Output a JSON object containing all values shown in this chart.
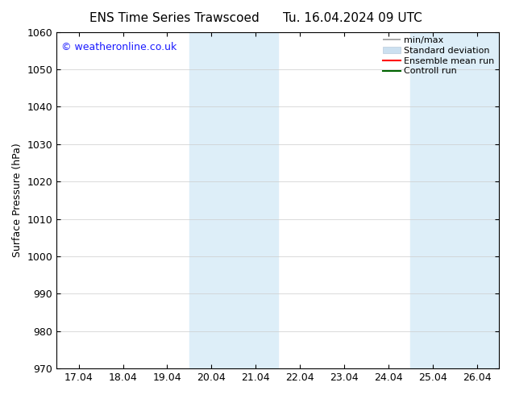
{
  "title_left": "ENS Time Series Trawscoed",
  "title_right": "Tu. 16.04.2024 09 UTC",
  "ylabel": "Surface Pressure (hPa)",
  "ylim": [
    970,
    1060
  ],
  "yticks": [
    970,
    980,
    990,
    1000,
    1010,
    1020,
    1030,
    1040,
    1050,
    1060
  ],
  "xtick_labels": [
    "17.04",
    "18.04",
    "19.04",
    "20.04",
    "21.04",
    "22.04",
    "23.04",
    "24.04",
    "25.04",
    "26.04"
  ],
  "xtick_positions": [
    0,
    1,
    2,
    3,
    4,
    5,
    6,
    7,
    8,
    9
  ],
  "xlim": [
    -0.5,
    9.5
  ],
  "shaded_regions": [
    {
      "xmin": 2.5,
      "xmax": 4.5
    },
    {
      "xmin": 7.5,
      "xmax": 9.5
    }
  ],
  "shaded_color": "#ddeef8",
  "watermark": "© weatheronline.co.uk",
  "watermark_color": "#1a1aff",
  "background_color": "#ffffff",
  "title_fontsize": 11,
  "label_fontsize": 9,
  "tick_fontsize": 9
}
